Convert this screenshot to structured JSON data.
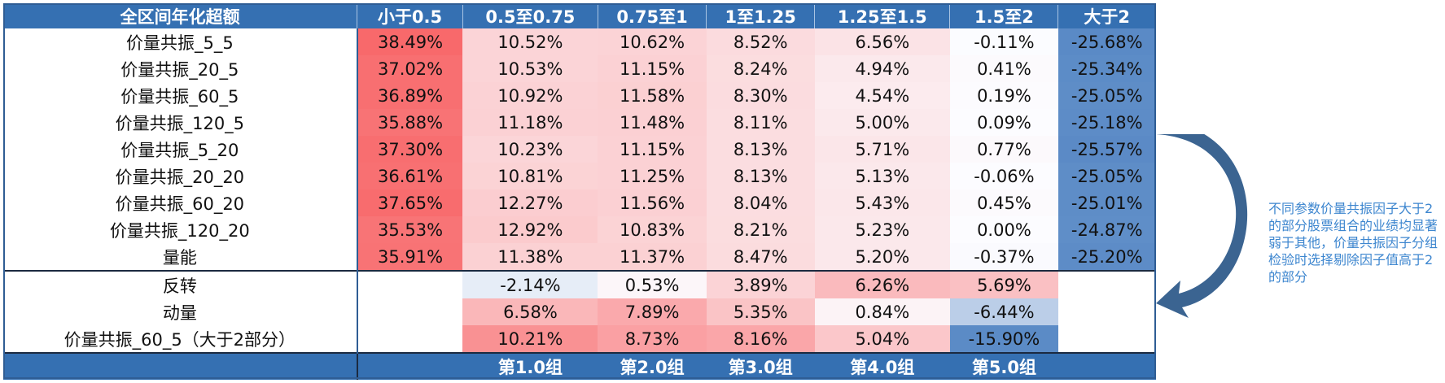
{
  "header": [
    "全区间年化超额",
    "小于0.5",
    "0.5至0.75",
    "0.75至1",
    "1至1.25",
    "1.25至1.5",
    "1.5至2",
    "大于2"
  ],
  "rows": [
    {
      "label": "价量共振_5_5",
      "values": [
        "38.49%",
        "10.52%",
        "10.62%",
        "8.52%",
        "6.56%",
        "-0.11%",
        "-25.68%"
      ],
      "nums": [
        38.49,
        10.52,
        10.62,
        8.52,
        6.56,
        -0.11,
        -25.68
      ]
    },
    {
      "label": "价量共振_20_5",
      "values": [
        "37.02%",
        "10.53%",
        "11.15%",
        "8.24%",
        "4.94%",
        "0.41%",
        "-25.34%"
      ],
      "nums": [
        37.02,
        10.53,
        11.15,
        8.24,
        4.94,
        0.41,
        -25.34
      ]
    },
    {
      "label": "价量共振_60_5",
      "values": [
        "36.89%",
        "10.92%",
        "11.58%",
        "8.30%",
        "4.54%",
        "0.19%",
        "-25.05%"
      ],
      "nums": [
        36.89,
        10.92,
        11.58,
        8.3,
        4.54,
        0.19,
        -25.05
      ]
    },
    {
      "label": "价量共振_120_5",
      "values": [
        "35.88%",
        "11.18%",
        "11.48%",
        "8.11%",
        "5.00%",
        "0.09%",
        "-25.18%"
      ],
      "nums": [
        35.88,
        11.18,
        11.48,
        8.11,
        5.0,
        0.09,
        -25.18
      ]
    },
    {
      "label": "价量共振_5_20",
      "values": [
        "37.30%",
        "10.23%",
        "11.15%",
        "8.13%",
        "5.71%",
        "0.77%",
        "-25.57%"
      ],
      "nums": [
        37.3,
        10.23,
        11.15,
        8.13,
        5.71,
        0.77,
        -25.57
      ]
    },
    {
      "label": "价量共振_20_20",
      "values": [
        "36.61%",
        "10.81%",
        "11.25%",
        "8.13%",
        "5.13%",
        "-0.06%",
        "-25.05%"
      ],
      "nums": [
        36.61,
        10.81,
        11.25,
        8.13,
        5.13,
        -0.06,
        -25.05
      ]
    },
    {
      "label": "价量共振_60_20",
      "values": [
        "37.65%",
        "12.27%",
        "11.56%",
        "8.04%",
        "5.43%",
        "0.45%",
        "-25.01%"
      ],
      "nums": [
        37.65,
        12.27,
        11.56,
        8.04,
        5.43,
        0.45,
        -25.01
      ]
    },
    {
      "label": "价量共振_120_20",
      "values": [
        "35.53%",
        "12.92%",
        "10.83%",
        "8.21%",
        "5.23%",
        "0.00%",
        "-24.87%"
      ],
      "nums": [
        35.53,
        12.92,
        10.83,
        8.21,
        5.23,
        0.0,
        -24.87
      ]
    },
    {
      "label": "量能",
      "values": [
        "35.91%",
        "11.38%",
        "11.37%",
        "8.47%",
        "5.20%",
        "-0.37%",
        "-25.20%"
      ],
      "nums": [
        35.91,
        11.38,
        11.37,
        8.47,
        5.2,
        -0.37,
        -25.2
      ]
    },
    {
      "label": "反转",
      "values": [
        "",
        "-2.14%",
        "0.53%",
        "3.89%",
        "6.26%",
        "5.69%",
        ""
      ],
      "nums": [
        null,
        -2.14,
        0.53,
        3.89,
        6.26,
        5.69,
        null
      ]
    },
    {
      "label": "动量",
      "values": [
        "",
        "6.58%",
        "7.89%",
        "5.35%",
        "0.84%",
        "-6.44%",
        ""
      ],
      "nums": [
        null,
        6.58,
        7.89,
        5.35,
        0.84,
        -6.44,
        null
      ]
    },
    {
      "label": "价量共振_60_5（大于2部分）",
      "values": [
        "",
        "10.21%",
        "8.73%",
        "8.16%",
        "5.04%",
        "-15.90%",
        ""
      ],
      "nums": [
        null,
        10.21,
        8.73,
        8.16,
        5.04,
        -15.9,
        null
      ]
    }
  ],
  "footer": [
    "",
    "",
    "第1.0组",
    "第2.0组",
    "第3.0组",
    "第4.0组",
    "第5.0组",
    ""
  ],
  "colors": {
    "header_bg": "#3570b2",
    "positive_max": "#f8696b",
    "negative_max": "#5a8ac6",
    "neutral": "#fcfcff"
  },
  "note": "不同参数价量共振因子大于2的部分股票组合的业绩均显著弱于其他，价量共振因子分组检验时选择剔除因子值高于2的部分"
}
